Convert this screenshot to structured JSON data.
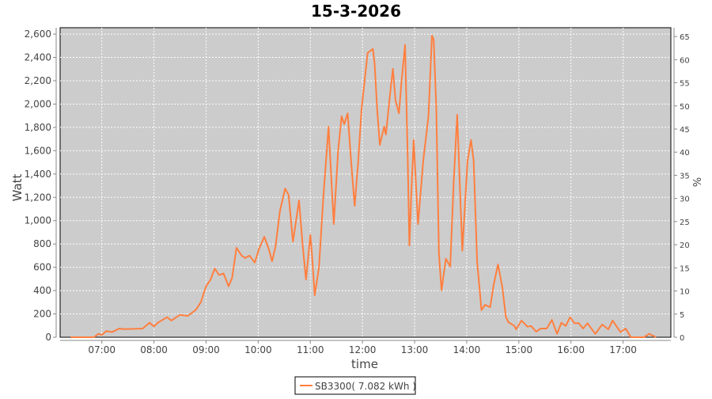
{
  "chart_data": {
    "type": "line",
    "title": "15-3-2026",
    "xlabel": "time",
    "ylabel": "Watt",
    "y2label": "%",
    "xlim": [
      "06:12",
      "17:55"
    ],
    "ylim": [
      0,
      2655
    ],
    "y2lim": [
      0,
      66.9
    ],
    "grid": true,
    "legend_placement": "bottom",
    "x_ticks": [
      "07:00",
      "08:00",
      "09:00",
      "10:00",
      "11:00",
      "12:00",
      "13:00",
      "14:00",
      "15:00",
      "16:00",
      "17:00"
    ],
    "y_ticks": [
      0,
      200,
      400,
      600,
      800,
      1000,
      1200,
      1400,
      1600,
      1800,
      2000,
      2200,
      2400,
      2600
    ],
    "y_tick_labels": [
      "0",
      "200",
      "400",
      "600",
      "800",
      "1,000",
      "1,200",
      "1,400",
      "1,600",
      "1,800",
      "2,000",
      "2,200",
      "2,400",
      "2,600"
    ],
    "y2_ticks": [
      0,
      5,
      10,
      15,
      20,
      25,
      30,
      35,
      40,
      45,
      50,
      55,
      60,
      65
    ],
    "colors": {
      "series": "#ff7f3f",
      "plot_background": "#cccccc",
      "grid": "#ffffff"
    },
    "series": [
      {
        "name": "SB3300( 7.082 kWh )",
        "points": [
          [
            "06:24",
            0
          ],
          [
            "06:51",
            0
          ],
          [
            "06:56",
            29
          ],
          [
            "07:00",
            20
          ],
          [
            "07:05",
            52
          ],
          [
            "07:12",
            45
          ],
          [
            "07:20",
            75
          ],
          [
            "07:26",
            70
          ],
          [
            "07:47",
            75
          ],
          [
            "07:55",
            124
          ],
          [
            "08:00",
            93
          ],
          [
            "08:05",
            127
          ],
          [
            "08:15",
            172
          ],
          [
            "08:20",
            143
          ],
          [
            "08:30",
            192
          ],
          [
            "08:39",
            183
          ],
          [
            "08:48",
            233
          ],
          [
            "08:54",
            301
          ],
          [
            "09:00",
            437
          ],
          [
            "09:05",
            493
          ],
          [
            "09:10",
            589
          ],
          [
            "09:15",
            534
          ],
          [
            "09:20",
            547
          ],
          [
            "09:26",
            437
          ],
          [
            "09:30",
            510
          ],
          [
            "09:35",
            767
          ],
          [
            "09:41",
            700
          ],
          [
            "09:45",
            680
          ],
          [
            "09:50",
            700
          ],
          [
            "09:56",
            640
          ],
          [
            "10:01",
            760
          ],
          [
            "10:07",
            862
          ],
          [
            "10:12",
            760
          ],
          [
            "10:16",
            652
          ],
          [
            "10:20",
            780
          ],
          [
            "10:25",
            1080
          ],
          [
            "10:31",
            1276
          ],
          [
            "10:35",
            1220
          ],
          [
            "10:40",
            820
          ],
          [
            "10:47",
            1174
          ],
          [
            "10:51",
            800
          ],
          [
            "10:55",
            495
          ],
          [
            "11:00",
            878
          ],
          [
            "11:02",
            700
          ],
          [
            "11:05",
            360
          ],
          [
            "11:10",
            600
          ],
          [
            "11:15",
            1200
          ],
          [
            "11:21",
            1806
          ],
          [
            "11:27",
            970
          ],
          [
            "11:32",
            1600
          ],
          [
            "11:36",
            1896
          ],
          [
            "11:39",
            1828
          ],
          [
            "11:43",
            1920
          ],
          [
            "11:47",
            1500
          ],
          [
            "11:51",
            1127
          ],
          [
            "11:55",
            1500
          ],
          [
            "11:59",
            1964
          ],
          [
            "12:06",
            2439
          ],
          [
            "12:12",
            2473
          ],
          [
            "12:14",
            2349
          ],
          [
            "12:17",
            1950
          ],
          [
            "12:20",
            1650
          ],
          [
            "12:25",
            1806
          ],
          [
            "12:27",
            1738
          ],
          [
            "12:32",
            2100
          ],
          [
            "12:35",
            2303
          ],
          [
            "12:38",
            2032
          ],
          [
            "12:42",
            1920
          ],
          [
            "12:45",
            2200
          ],
          [
            "12:49",
            2507
          ],
          [
            "12:52",
            1557
          ],
          [
            "12:54",
            787
          ],
          [
            "12:56",
            1200
          ],
          [
            "12:59",
            1692
          ],
          [
            "13:04",
            970
          ],
          [
            "13:10",
            1514
          ],
          [
            "13:16",
            1896
          ],
          [
            "13:20",
            2587
          ],
          [
            "13:22",
            2553
          ],
          [
            "13:25",
            1964
          ],
          [
            "13:28",
            720
          ],
          [
            "13:31",
            403
          ],
          [
            "13:36",
            674
          ],
          [
            "13:41",
            606
          ],
          [
            "13:45",
            1331
          ],
          [
            "13:49",
            1908
          ],
          [
            "13:52",
            1331
          ],
          [
            "13:55",
            742
          ],
          [
            "14:01",
            1514
          ],
          [
            "14:05",
            1692
          ],
          [
            "14:08",
            1514
          ],
          [
            "14:12",
            652
          ],
          [
            "14:17",
            233
          ],
          [
            "14:21",
            278
          ],
          [
            "14:27",
            258
          ],
          [
            "14:31",
            450
          ],
          [
            "14:36",
            625
          ],
          [
            "14:41",
            428
          ],
          [
            "14:45",
            176
          ],
          [
            "14:48",
            129
          ],
          [
            "14:55",
            97
          ],
          [
            "14:57",
            68
          ],
          [
            "15:03",
            143
          ],
          [
            "15:10",
            90
          ],
          [
            "15:14",
            97
          ],
          [
            "15:20",
            48
          ],
          [
            "15:25",
            75
          ],
          [
            "15:32",
            75
          ],
          [
            "15:38",
            149
          ],
          [
            "15:44",
            29
          ],
          [
            "15:49",
            124
          ],
          [
            "15:54",
            97
          ],
          [
            "15:59",
            172
          ],
          [
            "16:04",
            120
          ],
          [
            "16:09",
            120
          ],
          [
            "16:14",
            75
          ],
          [
            "16:19",
            120
          ],
          [
            "16:28",
            29
          ],
          [
            "16:36",
            109
          ],
          [
            "16:43",
            68
          ],
          [
            "16:48",
            143
          ],
          [
            "16:57",
            45
          ],
          [
            "17:03",
            75
          ],
          [
            "17:09",
            0
          ],
          [
            "17:24",
            0
          ],
          [
            "17:30",
            29
          ],
          [
            "17:38",
            0
          ]
        ]
      }
    ]
  }
}
